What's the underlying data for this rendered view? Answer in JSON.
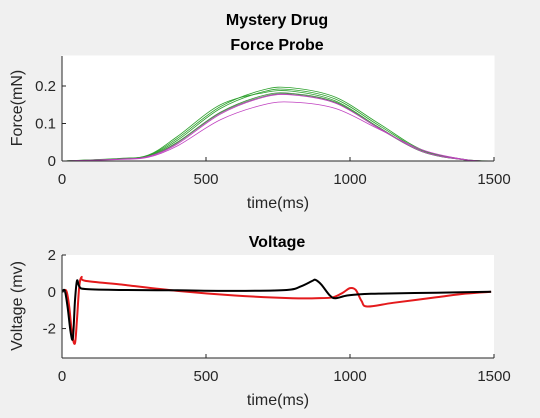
{
  "chart_data": [
    {
      "type": "line",
      "title": "Mystery Drug",
      "subtitle": "Force Probe",
      "xlabel": "time(ms)",
      "ylabel": "Force(mN)",
      "xlim": [
        0,
        1500
      ],
      "ylim": [
        0,
        0.28
      ],
      "xticks": [
        0,
        500,
        1000,
        1500
      ],
      "yticks": [
        0,
        0.1,
        0.2
      ],
      "xtick_labels": [
        "0",
        "500",
        "1000",
        "1500"
      ],
      "ytick_labels": [
        "0",
        "0.1",
        "0.2"
      ],
      "grid": false,
      "series": [
        {
          "color": "#2ca02c",
          "values": [
            [
              0,
              0
            ],
            [
              200,
              0.006
            ],
            [
              300,
              0.015
            ],
            [
              400,
              0.06
            ],
            [
              550,
              0.145
            ],
            [
              700,
              0.19
            ],
            [
              800,
              0.195
            ],
            [
              950,
              0.17
            ],
            [
              1100,
              0.1
            ],
            [
              1250,
              0.03
            ],
            [
              1400,
              0.004
            ],
            [
              1500,
              0
            ]
          ]
        },
        {
          "color": "#2ca02c",
          "values": [
            [
              0,
              0
            ],
            [
              200,
              0.006
            ],
            [
              300,
              0.014
            ],
            [
              400,
              0.055
            ],
            [
              550,
              0.14
            ],
            [
              700,
              0.185
            ],
            [
              800,
              0.19
            ],
            [
              950,
              0.165
            ],
            [
              1100,
              0.095
            ],
            [
              1250,
              0.028
            ],
            [
              1400,
              0.004
            ],
            [
              1500,
              0
            ]
          ]
        },
        {
          "color": "#2ca02c",
          "values": [
            [
              0,
              0
            ],
            [
              200,
              0.007
            ],
            [
              300,
              0.016
            ],
            [
              400,
              0.065
            ],
            [
              550,
              0.15
            ],
            [
              700,
              0.182
            ],
            [
              800,
              0.186
            ],
            [
              950,
              0.16
            ],
            [
              1100,
              0.09
            ],
            [
              1250,
              0.025
            ],
            [
              1400,
              0.003
            ],
            [
              1500,
              0
            ]
          ]
        },
        {
          "color": "#3a8f3a",
          "values": [
            [
              0,
              0
            ],
            [
              200,
              0.006
            ],
            [
              300,
              0.013
            ],
            [
              400,
              0.05
            ],
            [
              550,
              0.13
            ],
            [
              700,
              0.175
            ],
            [
              800,
              0.18
            ],
            [
              950,
              0.157
            ],
            [
              1100,
              0.088
            ],
            [
              1250,
              0.026
            ],
            [
              1400,
              0.003
            ],
            [
              1500,
              0
            ]
          ]
        },
        {
          "color": "#777777",
          "values": [
            [
              0,
              0
            ],
            [
              200,
              0.005
            ],
            [
              300,
              0.012
            ],
            [
              400,
              0.048
            ],
            [
              550,
              0.128
            ],
            [
              700,
              0.172
            ],
            [
              800,
              0.178
            ],
            [
              950,
              0.155
            ],
            [
              1100,
              0.087
            ],
            [
              1250,
              0.025
            ],
            [
              1400,
              0.003
            ],
            [
              1500,
              0
            ]
          ]
        },
        {
          "color": "#c040c0",
          "values": [
            [
              0,
              0
            ],
            [
              200,
              0.005
            ],
            [
              300,
              0.012
            ],
            [
              400,
              0.045
            ],
            [
              550,
              0.125
            ],
            [
              700,
              0.17
            ],
            [
              800,
              0.176
            ],
            [
              950,
              0.154
            ],
            [
              1100,
              0.088
            ],
            [
              1250,
              0.026
            ],
            [
              1400,
              0.003
            ],
            [
              1500,
              0
            ]
          ]
        },
        {
          "color": "#c040c0",
          "values": [
            [
              0,
              0
            ],
            [
              200,
              0.004
            ],
            [
              300,
              0.01
            ],
            [
              400,
              0.04
            ],
            [
              550,
              0.11
            ],
            [
              700,
              0.15
            ],
            [
              800,
              0.157
            ],
            [
              950,
              0.14
            ],
            [
              1100,
              0.085
            ],
            [
              1250,
              0.03
            ],
            [
              1400,
              0.004
            ],
            [
              1500,
              0
            ]
          ]
        }
      ]
    },
    {
      "type": "line",
      "title": "Voltage",
      "xlabel": "time(ms)",
      "ylabel": "Voltage (mv)",
      "xlim": [
        0,
        1500
      ],
      "ylim": [
        -3.6,
        2
      ],
      "xticks": [
        0,
        500,
        1000,
        1500
      ],
      "yticks": [
        -2,
        0,
        2
      ],
      "xtick_labels": [
        "0",
        "500",
        "1000",
        "1500"
      ],
      "ytick_labels": [
        "-2",
        "0",
        "2"
      ],
      "grid": false,
      "series": [
        {
          "color": "#e41a1c",
          "values": [
            [
              0,
              0
            ],
            [
              15,
              0.05
            ],
            [
              25,
              -0.8
            ],
            [
              35,
              -2.3
            ],
            [
              45,
              -2.8
            ],
            [
              52,
              -1.5
            ],
            [
              60,
              0.3
            ],
            [
              68,
              0.8
            ],
            [
              80,
              0.6
            ],
            [
              200,
              0.4
            ],
            [
              400,
              0.05
            ],
            [
              600,
              -0.2
            ],
            [
              800,
              -0.35
            ],
            [
              880,
              -0.35
            ],
            [
              940,
              -0.3
            ],
            [
              975,
              -0.05
            ],
            [
              1000,
              0.2
            ],
            [
              1020,
              0.1
            ],
            [
              1040,
              -0.5
            ],
            [
              1060,
              -0.8
            ],
            [
              1150,
              -0.6
            ],
            [
              1300,
              -0.3
            ],
            [
              1400,
              -0.1
            ],
            [
              1490,
              0
            ]
          ]
        },
        {
          "color": "#000000",
          "values": [
            [
              0,
              0
            ],
            [
              10,
              0.05
            ],
            [
              20,
              -0.9
            ],
            [
              30,
              -2.2
            ],
            [
              38,
              -2.5
            ],
            [
              45,
              -0.5
            ],
            [
              52,
              0.6
            ],
            [
              60,
              0.3
            ],
            [
              80,
              0.15
            ],
            [
              200,
              0.1
            ],
            [
              400,
              0.08
            ],
            [
              600,
              0.05
            ],
            [
              780,
              0.1
            ],
            [
              830,
              0.3
            ],
            [
              870,
              0.6
            ],
            [
              880,
              0.65
            ],
            [
              900,
              0.4
            ],
            [
              930,
              -0.2
            ],
            [
              950,
              -0.35
            ],
            [
              990,
              -0.2
            ],
            [
              1050,
              -0.12
            ],
            [
              1100,
              -0.1
            ],
            [
              1300,
              -0.05
            ],
            [
              1490,
              0
            ]
          ]
        }
      ]
    }
  ]
}
